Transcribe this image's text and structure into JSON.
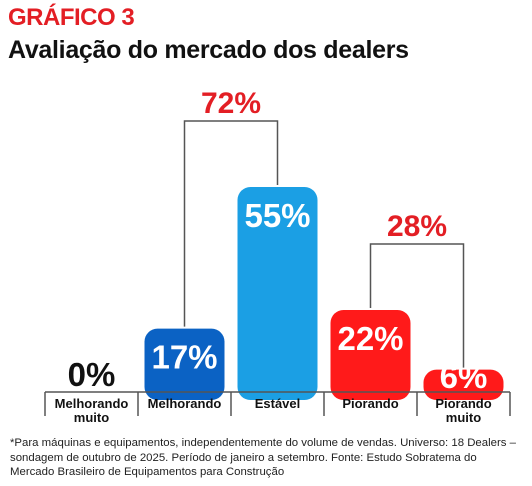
{
  "header": {
    "kicker": "GRÁFICO 3",
    "title": "Avaliação do mercado dos dealers"
  },
  "chart_data": {
    "type": "bar",
    "categories": [
      "Melhorando muito",
      "Melhorando",
      "Estável",
      "Piorando",
      "Piorando muito"
    ],
    "category_lines": [
      [
        "Melhorando",
        "muito"
      ],
      [
        "Melhorando"
      ],
      [
        "Estável"
      ],
      [
        "Piorando"
      ],
      [
        "Piorando",
        "muito"
      ]
    ],
    "values": [
      0,
      17,
      55,
      22,
      6
    ],
    "value_labels": [
      "0%",
      "17%",
      "55%",
      "22%",
      "6%"
    ],
    "ylim": [
      0,
      55
    ],
    "colors": [
      "#0b62c4",
      "#0b62c4",
      "#1b9fe4",
      "#ff1a1a",
      "#ff1a1a"
    ],
    "groups": [
      {
        "label": "72%",
        "from": 1,
        "to": 2
      },
      {
        "label": "28%",
        "from": 3,
        "to": 4
      }
    ],
    "accent_color": "#e31e24",
    "axis_color": "#555555",
    "bracket_color": "#555555"
  },
  "footnote": "*Para máquinas e equipamentos, independentemente do volume de vendas. Universo: 18 Dealers – sondagem de outubro de 2025. Período de janeiro a setembro. Fonte: Estudo Sobratema do Mercado Brasileiro de Equipamentos para Construção"
}
